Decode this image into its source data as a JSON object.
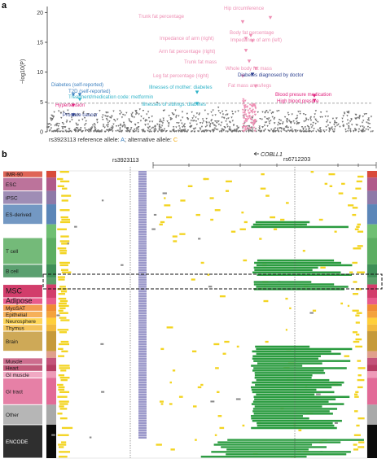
{
  "panel_a": {
    "label": "a",
    "caption_prefix": "rs3923113 reference allele: ",
    "ref_allele": "A",
    "caption_mid": "; alternative allele: ",
    "alt_allele": "C",
    "colors": {
      "background_points": "#6f6f6f",
      "pink": "#ee8fb4",
      "magenta": "#e0247f",
      "blue": "#3b7fbf",
      "cyan": "#2fb3c8",
      "navy": "#2b3f8f",
      "threshold": "#9a9a9a"
    },
    "chart_data": {
      "type": "scatter",
      "ylabel": "−log10(P)",
      "ylim": [
        0,
        21
      ],
      "yticks": [
        0,
        5,
        10,
        15,
        20
      ],
      "threshold": 4.8,
      "grid": false,
      "annotations": [
        {
          "label": "Hip circumference",
          "color": "pink",
          "x": 0.685,
          "y": 19.1
        },
        {
          "label": "Trunk fat percentage",
          "color": "pink",
          "x": 0.6,
          "y": 18.4
        },
        {
          "label": "Body fat percentage",
          "color": "pink",
          "x": 0.625,
          "y": 16.1
        },
        {
          "label": "Impedance of arm (right)",
          "color": "pink",
          "x": 0.61,
          "y": 15.6
        },
        {
          "label": "Impedance of arm (left)",
          "color": "pink",
          "x": 0.63,
          "y": 15.2
        },
        {
          "label": "Arm fat percentage (right)",
          "color": "pink",
          "x": 0.61,
          "y": 13.6
        },
        {
          "label": "Trunk fat mass",
          "color": "pink",
          "x": 0.62,
          "y": 11.8
        },
        {
          "label": "Whole body fat mass",
          "color": "pink",
          "x": 0.64,
          "y": 10.6
        },
        {
          "label": "Leg fat percentage (right)",
          "color": "pink",
          "x": 0.6,
          "y": 9.3
        },
        {
          "label": "Diabetes diagnosed by doctor",
          "color": "navy",
          "x": 0.63,
          "y": 9.6
        },
        {
          "label": "Fat mass arms/legs",
          "color": "pink",
          "x": 0.64,
          "y": 7.6
        },
        {
          "label": "Diabetes (self-reported)",
          "color": "blue",
          "x": 0.08,
          "y": 6.2
        },
        {
          "label": "T2D (self-reported)",
          "color": "blue",
          "x": 0.1,
          "y": 6.2
        },
        {
          "label": "Illnesses of mother: diabetes",
          "color": "cyan",
          "x": 0.46,
          "y": 6.6
        },
        {
          "label": "Blood presure medication",
          "color": "magenta",
          "x": 0.82,
          "y": 6.0
        },
        {
          "label": "High blood presure",
          "color": "magenta",
          "x": 0.82,
          "y": 5.2
        },
        {
          "label": "Treatment/medication code: metformin",
          "color": "cyan",
          "x": 0.1,
          "y": 5.4
        },
        {
          "label": "Illnesses of siblings: diabetes",
          "color": "cyan",
          "x": 0.46,
          "y": 4.7
        },
        {
          "label": "Hypertension",
          "color": "magenta",
          "x": 0.08,
          "y": 4.4
        },
        {
          "label": "Prostate cancer",
          "color": "navy",
          "x": 0.08,
          "y": 2.8
        }
      ]
    }
  },
  "panel_b": {
    "label": "b",
    "snp_left": "rs3923113",
    "gene": "COBLL1",
    "snp_right": "rs6712203",
    "highlight_groups": [
      "MSC",
      "Adipose"
    ],
    "colors": {
      "yellow": "#f3d421",
      "green": "#2a9b3f",
      "lavender": "#9a97c9",
      "grey": "#8a8a8a",
      "encode": "#0b0b0b"
    },
    "chart_data": {
      "type": "heatmap",
      "tissue_groups": [
        {
          "name": "IMR-90",
          "color": "#d94a3a",
          "rows": 1
        },
        {
          "name": "ESC",
          "color": "#b05a8a",
          "rows": 2
        },
        {
          "name": "iPSC",
          "color": "#8e79a8",
          "rows": 2
        },
        {
          "name": "ES-derived",
          "color": "#5b86b8",
          "rows": 3
        },
        {
          "name": "",
          "color": "#6fbf73",
          "rows": 2
        },
        {
          "name": "T cell",
          "color": "#5cae62",
          "rows": 4
        },
        {
          "name": "B cell",
          "color": "#3e8f57",
          "rows": 2
        },
        {
          "name": "",
          "color": "#5aa06a",
          "rows": 1
        },
        {
          "name": "MSC",
          "color": "#d23d6b",
          "rows": 2
        },
        {
          "name": "Adipose",
          "color": "#e85a8b",
          "rows": 1
        },
        {
          "name": "MyoSAT",
          "color": "#f08a34",
          "rows": 1
        },
        {
          "name": "Epithelial",
          "color": "#f4a23c",
          "rows": 1
        },
        {
          "name": "Neurosphere",
          "color": "#ffcf3a",
          "rows": 1
        },
        {
          "name": "Thymus",
          "color": "#f2b93c",
          "rows": 1
        },
        {
          "name": "Brain",
          "color": "#c69a3a",
          "rows": 3
        },
        {
          "name": "",
          "color": "#e0a08c",
          "rows": 1
        },
        {
          "name": "Muscle",
          "color": "#c4537a",
          "rows": 1
        },
        {
          "name": "Heart",
          "color": "#b53c62",
          "rows": 1
        },
        {
          "name": "GI muscle",
          "color": "#ee9ab8",
          "rows": 1
        },
        {
          "name": "GI tract",
          "color": "#e26a97",
          "rows": 4
        },
        {
          "name": "Other",
          "color": "#a9a9a9",
          "rows": 3
        },
        {
          "name": "ENCODE",
          "color": "#0b0b0b",
          "rows": 5
        }
      ]
    }
  }
}
